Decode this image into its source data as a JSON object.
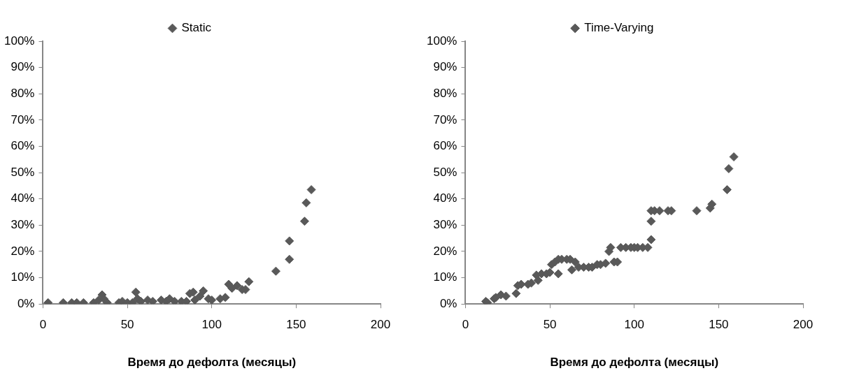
{
  "chart_data": [
    {
      "type": "scatter",
      "xlabel": "Время до дефолта (месяцы)",
      "legend": "top",
      "marker": "diamond",
      "grid": false,
      "xlim": [
        0,
        200
      ],
      "xticks": [
        0,
        50,
        100,
        150,
        200
      ],
      "ylim": [
        0,
        100
      ],
      "yticks": [
        {
          "value": 0,
          "label": "0%"
        },
        {
          "value": 10,
          "label": "10%"
        },
        {
          "value": 20,
          "label": "20%"
        },
        {
          "value": 30,
          "label": "30%"
        },
        {
          "value": 40,
          "label": "40%"
        },
        {
          "value": 50,
          "label": "50%"
        },
        {
          "value": 60,
          "label": "60%"
        },
        {
          "value": 70,
          "label": "70%"
        },
        {
          "value": 80,
          "label": "80%"
        },
        {
          "value": 90,
          "label": "90%"
        },
        {
          "value": 100,
          "label": "100%"
        }
      ],
      "series": [
        {
          "name": "Static",
          "color": "#595959",
          "x": [
            3,
            12,
            17,
            20,
            24,
            30,
            33,
            35,
            36,
            38,
            45,
            47,
            50,
            53,
            55,
            56,
            58,
            62,
            65,
            70,
            73,
            75,
            78,
            82,
            85,
            87,
            89,
            90,
            93,
            95,
            98,
            100,
            105,
            108,
            110,
            112,
            115,
            118,
            120,
            122,
            138,
            146,
            146,
            155,
            156,
            159
          ],
          "values": [
            0.5,
            0.5,
            0.5,
            0.5,
            0.5,
            0.5,
            1.5,
            3.5,
            2,
            0.5,
            0.5,
            1,
            0.5,
            0.5,
            4.5,
            2,
            1,
            1.5,
            1,
            1.5,
            1,
            2,
            1,
            1,
            1,
            4,
            4.5,
            1.5,
            3,
            5,
            2,
            1.5,
            2,
            2.5,
            7.5,
            6,
            7,
            5.5,
            5.5,
            8.5,
            12.5,
            17,
            24,
            31.5,
            38.5,
            43.5
          ]
        }
      ]
    },
    {
      "type": "scatter",
      "xlabel": "Время до дефолта (месяцы)",
      "legend": "top",
      "marker": "diamond",
      "grid": false,
      "xlim": [
        0,
        200
      ],
      "xticks": [
        0,
        50,
        100,
        150,
        200
      ],
      "ylim": [
        0,
        100
      ],
      "yticks": [
        {
          "value": 0,
          "label": "0%"
        },
        {
          "value": 10,
          "label": "10%"
        },
        {
          "value": 20,
          "label": "20%"
        },
        {
          "value": 30,
          "label": "30%"
        },
        {
          "value": 40,
          "label": "40%"
        },
        {
          "value": 50,
          "label": "50%"
        },
        {
          "value": 60,
          "label": "60%"
        },
        {
          "value": 70,
          "label": "70%"
        },
        {
          "value": 80,
          "label": "80%"
        },
        {
          "value": 90,
          "label": "90%"
        },
        {
          "value": 100,
          "label": "100%"
        }
      ],
      "series": [
        {
          "name": "Time-Varying",
          "color": "#595959",
          "x": [
            12,
            13,
            17,
            18,
            21,
            24,
            30,
            31,
            33,
            37,
            39,
            42,
            43,
            45,
            48,
            50,
            51,
            53,
            55,
            55,
            57,
            60,
            62,
            63,
            65,
            67,
            70,
            73,
            75,
            78,
            80,
            83,
            85,
            86,
            88,
            90,
            92,
            95,
            98,
            100,
            102,
            105,
            108,
            110,
            110,
            110,
            112,
            115,
            120,
            122,
            137,
            145,
            146,
            155,
            156,
            159
          ],
          "values": [
            1,
            0.5,
            2,
            2.5,
            3.5,
            3,
            4,
            7,
            7.5,
            7.5,
            8,
            11,
            9,
            11.5,
            11.5,
            12,
            15,
            16,
            17,
            11.5,
            17,
            17,
            17,
            13,
            16,
            14,
            14,
            14,
            14,
            15,
            15,
            15.5,
            20,
            21.5,
            16,
            16,
            21.5,
            21.5,
            21.5,
            21.5,
            21.5,
            21.5,
            21.5,
            24.5,
            31.5,
            35.5,
            35.5,
            35.5,
            35.5,
            35.5,
            35.5,
            36.5,
            38,
            43.5,
            51.5,
            56
          ]
        }
      ]
    }
  ]
}
